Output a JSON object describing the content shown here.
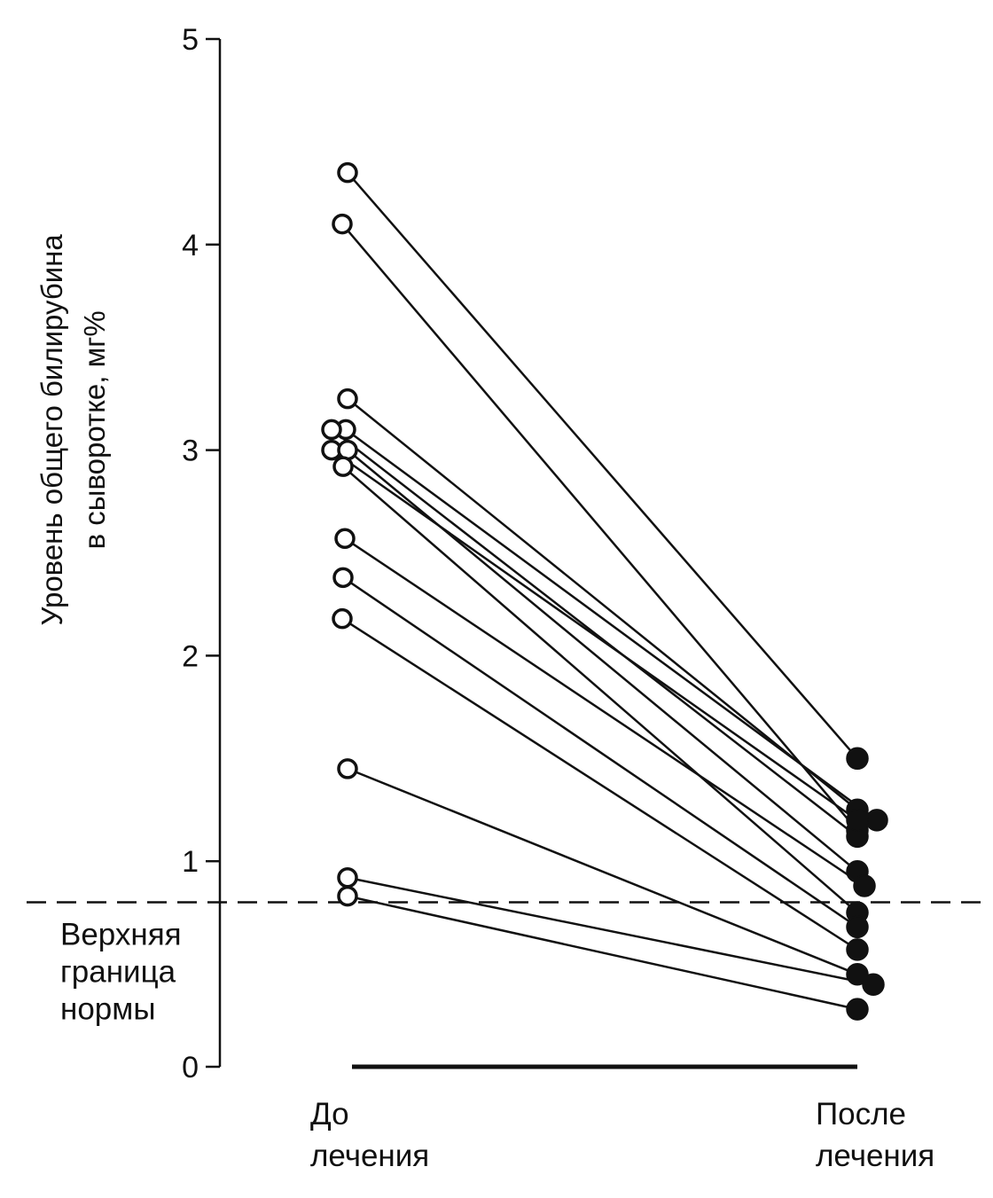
{
  "chart_data": {
    "type": "scatter",
    "title": "",
    "ylabel": [
      "Уровень общего билирубина",
      "в сыворотке, мг%"
    ],
    "xlabel": "",
    "categories": [
      [
        "До",
        "лечения"
      ],
      [
        "После",
        "лечения"
      ]
    ],
    "ylim": [
      0,
      5
    ],
    "yticks": [
      "0",
      "1",
      "2",
      "3",
      "4",
      "5"
    ],
    "grid": false,
    "legend": "none",
    "reference_line": {
      "value": 0.8,
      "style": "dashed",
      "label": [
        "Верхняя",
        "граница",
        "нормы"
      ]
    },
    "markers": {
      "before": "open-circle",
      "after": "filled-circle"
    },
    "pairs": [
      {
        "before": 4.35,
        "after": 1.5
      },
      {
        "before": 4.1,
        "after": 1.15
      },
      {
        "before": 3.25,
        "after": 1.25
      },
      {
        "before": 3.1,
        "after": 1.2
      },
      {
        "before": 3.1,
        "after": 1.12
      },
      {
        "before": 3.0,
        "after": 1.2
      },
      {
        "before": 3.0,
        "after": 0.95
      },
      {
        "before": 2.92,
        "after": 0.75
      },
      {
        "before": 2.57,
        "after": 0.88
      },
      {
        "before": 2.38,
        "after": 0.68
      },
      {
        "before": 2.18,
        "after": 0.57
      },
      {
        "before": 1.45,
        "after": 0.45
      },
      {
        "before": 0.92,
        "after": 0.4
      },
      {
        "before": 0.83,
        "after": 0.28
      }
    ]
  },
  "colors": {
    "ink": "#111111",
    "background": "#ffffff"
  }
}
